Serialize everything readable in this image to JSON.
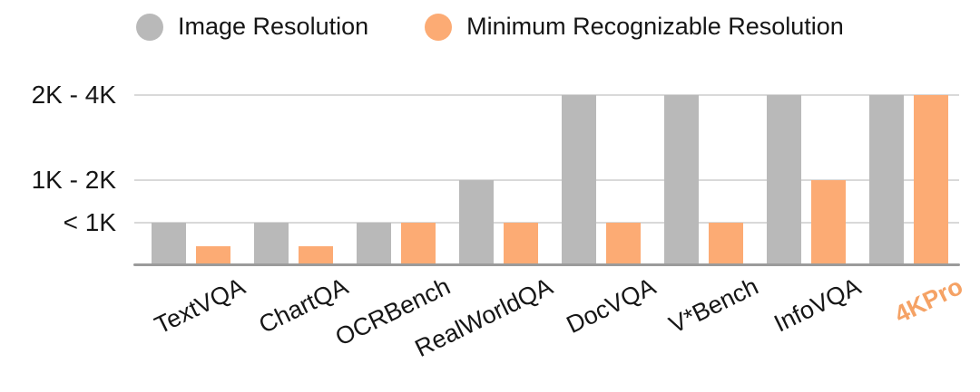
{
  "chart_data": {
    "type": "bar",
    "title": "",
    "xlabel": "",
    "ylabel": "",
    "categories": [
      "TextVQA",
      "ChartQA",
      "OCRBench",
      "RealWorldQA",
      "DocVQA",
      "V*Bench",
      "InfoVQA",
      "4KPro"
    ],
    "series": [
      {
        "name": "Image Resolution",
        "color": "#b9b9b9",
        "values_k": [
          1,
          1,
          1,
          2,
          4,
          4,
          4,
          4
        ],
        "bands": [
          "<1K",
          "<1K",
          "<1K",
          "1K-2K",
          "2K-4K",
          "2K-4K",
          "2K-4K",
          "2K-4K"
        ]
      },
      {
        "name": "Minimum Recognizable Resolution",
        "color": "#fcab74",
        "values_k": [
          0.45,
          0.45,
          1,
          1,
          1,
          1,
          2,
          4
        ],
        "bands": [
          "<1K",
          "<1K",
          "<1K",
          "<1K",
          "<1K",
          "<1K",
          "1K-2K",
          "2K-4K"
        ]
      }
    ],
    "y_ticks": [
      {
        "label": "< 1K",
        "value_k": 1
      },
      {
        "label": "1K - 2K",
        "value_k": 2
      },
      {
        "label": "2K - 4K",
        "value_k": 4
      }
    ],
    "ylim_k": [
      0,
      4
    ],
    "grid": true,
    "legend_position": "top",
    "highlight_category": {
      "name": "4KPro",
      "color": "#f5a265",
      "bold": true
    }
  },
  "legend": {
    "items": [
      {
        "label": "Image Resolution",
        "color": "#b9b9b9"
      },
      {
        "label": "Minimum Recognizable Resolution",
        "color": "#fcab74"
      }
    ]
  },
  "colors": {
    "gridline": "#d9d9d9",
    "axis": "#9b9b9b",
    "text": "#161616",
    "background": "#ffffff"
  }
}
